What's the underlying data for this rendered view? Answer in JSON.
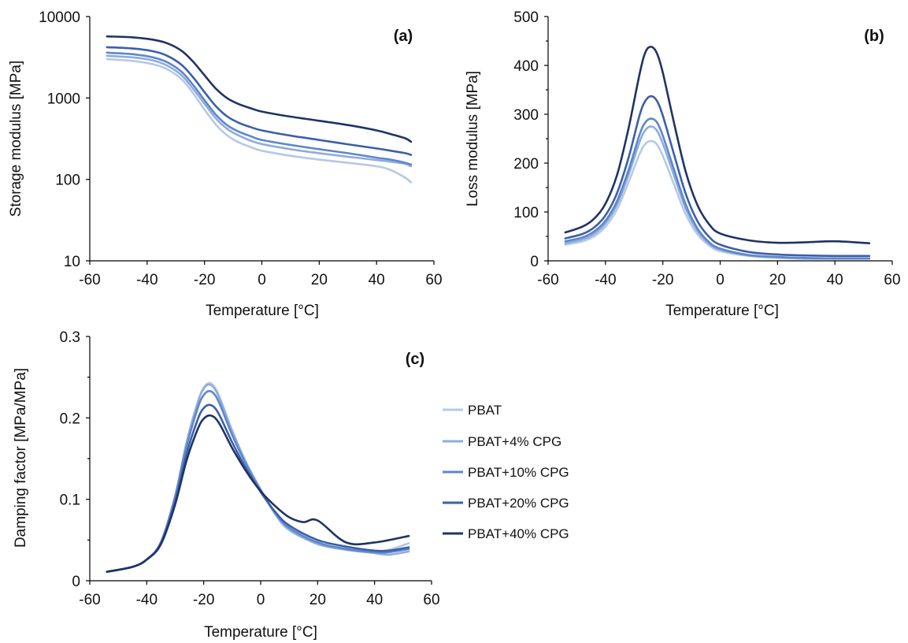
{
  "colors": [
    "#b4c9e6",
    "#8eacdc",
    "#5f86cc",
    "#3b5fa8",
    "#1f3464"
  ],
  "legend": {
    "entries": [
      "PBAT",
      "PBAT+4% CPG",
      "PBAT+10% CPG",
      "PBAT+20% CPG",
      "PBAT+40% CPG"
    ]
  },
  "chart_data": [
    {
      "panel_label": "(a)",
      "type": "line",
      "xlabel": "Temperature [°C]",
      "ylabel": "Storage modulus [MPa]",
      "xlim": [
        -60,
        60
      ],
      "xticks": [
        -60,
        -40,
        -20,
        0,
        20,
        40,
        60
      ],
      "ylim": [
        10,
        10000
      ],
      "yscale": "log",
      "yticks": [
        10,
        100,
        1000,
        10000
      ],
      "series": [
        {
          "name": "PBAT",
          "x": [
            -54,
            -45,
            -38,
            -33,
            -28,
            -24,
            -20,
            -16,
            -12,
            -8,
            -4,
            0,
            10,
            20,
            30,
            40,
            45,
            50,
            52
          ],
          "y": [
            3000,
            2850,
            2600,
            2250,
            1700,
            1150,
            720,
            470,
            345,
            285,
            250,
            225,
            195,
            175,
            160,
            145,
            130,
            105,
            92
          ]
        },
        {
          "name": "PBAT+4% CPG",
          "x": [
            -54,
            -45,
            -38,
            -33,
            -28,
            -24,
            -20,
            -16,
            -12,
            -8,
            -4,
            0,
            10,
            20,
            30,
            40,
            45,
            50,
            52
          ],
          "y": [
            3300,
            3150,
            2900,
            2500,
            1900,
            1300,
            850,
            560,
            415,
            345,
            300,
            272,
            235,
            210,
            190,
            173,
            165,
            155,
            145
          ]
        },
        {
          "name": "PBAT+10% CPG",
          "x": [
            -54,
            -45,
            -38,
            -33,
            -28,
            -24,
            -20,
            -16,
            -12,
            -8,
            -4,
            0,
            10,
            20,
            30,
            40,
            45,
            50,
            52
          ],
          "y": [
            3600,
            3450,
            3150,
            2750,
            2100,
            1450,
            940,
            620,
            460,
            385,
            340,
            305,
            265,
            235,
            210,
            185,
            175,
            160,
            152
          ]
        },
        {
          "name": "PBAT+20% CPG",
          "x": [
            -54,
            -45,
            -38,
            -33,
            -28,
            -24,
            -20,
            -16,
            -12,
            -8,
            -4,
            0,
            10,
            20,
            30,
            40,
            45,
            50,
            52
          ],
          "y": [
            4200,
            4050,
            3750,
            3300,
            2550,
            1800,
            1180,
            790,
            590,
            495,
            440,
            400,
            345,
            305,
            270,
            240,
            225,
            210,
            200
          ]
        },
        {
          "name": "PBAT+40% CPG",
          "x": [
            -54,
            -45,
            -38,
            -33,
            -28,
            -24,
            -20,
            -16,
            -12,
            -8,
            -4,
            0,
            10,
            20,
            30,
            40,
            45,
            50,
            52
          ],
          "y": [
            5700,
            5550,
            5200,
            4700,
            3800,
            2800,
            1900,
            1300,
            990,
            840,
            750,
            680,
            590,
            525,
            465,
            400,
            360,
            320,
            290
          ]
        }
      ]
    },
    {
      "panel_label": "(b)",
      "type": "line",
      "xlabel": "Temperature [°C]",
      "ylabel": "Loss modulus [MPa]",
      "xlim": [
        -60,
        60
      ],
      "xticks": [
        -60,
        -40,
        -20,
        0,
        20,
        40,
        60
      ],
      "ylim": [
        0,
        500
      ],
      "yticks": [
        0,
        100,
        200,
        300,
        400,
        500
      ],
      "series": [
        {
          "name": "PBAT",
          "x": [
            -54,
            -48,
            -44,
            -40,
            -36,
            -32,
            -28,
            -26,
            -24,
            -22,
            -20,
            -16,
            -12,
            -8,
            -4,
            0,
            10,
            20,
            30,
            40,
            52
          ],
          "y": [
            33,
            40,
            50,
            70,
            105,
            160,
            220,
            240,
            245,
            238,
            215,
            155,
            95,
            55,
            32,
            20,
            10,
            6,
            4,
            4,
            4
          ]
        },
        {
          "name": "PBAT+4% CPG",
          "x": [
            -54,
            -48,
            -44,
            -40,
            -36,
            -32,
            -28,
            -26,
            -24,
            -22,
            -20,
            -16,
            -12,
            -8,
            -4,
            0,
            10,
            20,
            30,
            40,
            52
          ],
          "y": [
            36,
            44,
            55,
            77,
            115,
            175,
            245,
            268,
            275,
            266,
            240,
            173,
            107,
            62,
            36,
            23,
            11,
            7,
            5,
            5,
            5
          ]
        },
        {
          "name": "PBAT+10% CPG",
          "x": [
            -54,
            -48,
            -44,
            -40,
            -36,
            -32,
            -28,
            -26,
            -24,
            -22,
            -20,
            -16,
            -12,
            -8,
            -4,
            0,
            10,
            20,
            30,
            40,
            52
          ],
          "y": [
            40,
            48,
            60,
            82,
            122,
            185,
            260,
            284,
            291,
            283,
            256,
            185,
            115,
            67,
            39,
            25,
            12,
            8,
            6,
            5,
            5
          ]
        },
        {
          "name": "PBAT+20% CPG",
          "x": [
            -54,
            -48,
            -44,
            -40,
            -36,
            -32,
            -28,
            -26,
            -24,
            -22,
            -20,
            -16,
            -12,
            -8,
            -4,
            0,
            10,
            20,
            30,
            40,
            52
          ],
          "y": [
            46,
            55,
            68,
            93,
            138,
            210,
            300,
            328,
            337,
            327,
            297,
            216,
            137,
            82,
            50,
            33,
            18,
            13,
            11,
            10,
            10
          ]
        },
        {
          "name": "PBAT+40% CPG",
          "x": [
            -54,
            -48,
            -44,
            -40,
            -36,
            -32,
            -28,
            -26,
            -24,
            -22,
            -20,
            -16,
            -12,
            -8,
            -4,
            0,
            10,
            20,
            30,
            40,
            52
          ],
          "y": [
            58,
            70,
            86,
            117,
            175,
            270,
            385,
            428,
            438,
            424,
            385,
            280,
            182,
            115,
            76,
            56,
            42,
            37,
            38,
            40,
            36
          ]
        }
      ]
    },
    {
      "panel_label": "(c)",
      "type": "line",
      "xlabel": "Temperature [°C]",
      "ylabel": "Damping factor [MPa/MPa]",
      "xlim": [
        -60,
        60
      ],
      "xticks": [
        -60,
        -40,
        -20,
        0,
        20,
        40,
        60
      ],
      "ylim": [
        0,
        0.3
      ],
      "yticks": [
        0,
        0.1,
        0.2,
        0.3
      ],
      "series": [
        {
          "name": "PBAT",
          "x": [
            -54,
            -45,
            -40,
            -35,
            -30,
            -26,
            -22,
            -20,
            -18,
            -16,
            -14,
            -10,
            -5,
            0,
            5,
            10,
            20,
            30,
            40,
            45,
            52
          ],
          "y": [
            0.011,
            0.017,
            0.026,
            0.048,
            0.105,
            0.17,
            0.22,
            0.237,
            0.243,
            0.237,
            0.222,
            0.185,
            0.145,
            0.112,
            0.082,
            0.062,
            0.046,
            0.04,
            0.037,
            0.038,
            0.046
          ]
        },
        {
          "name": "PBAT+4% CPG",
          "x": [
            -54,
            -45,
            -40,
            -35,
            -30,
            -26,
            -22,
            -20,
            -18,
            -16,
            -14,
            -10,
            -5,
            0,
            5,
            10,
            20,
            30,
            40,
            45,
            52
          ],
          "y": [
            0.011,
            0.017,
            0.026,
            0.048,
            0.105,
            0.17,
            0.22,
            0.236,
            0.241,
            0.235,
            0.22,
            0.183,
            0.144,
            0.112,
            0.083,
            0.063,
            0.045,
            0.038,
            0.034,
            0.032,
            0.036
          ]
        },
        {
          "name": "PBAT+10% CPG",
          "x": [
            -54,
            -45,
            -40,
            -35,
            -30,
            -26,
            -22,
            -20,
            -18,
            -16,
            -14,
            -10,
            -5,
            0,
            5,
            10,
            20,
            30,
            40,
            45,
            52
          ],
          "y": [
            0.011,
            0.017,
            0.026,
            0.047,
            0.103,
            0.165,
            0.213,
            0.228,
            0.233,
            0.228,
            0.214,
            0.179,
            0.142,
            0.111,
            0.084,
            0.065,
            0.047,
            0.039,
            0.035,
            0.035,
            0.039
          ]
        },
        {
          "name": "PBAT+20% CPG",
          "x": [
            -54,
            -45,
            -40,
            -35,
            -30,
            -26,
            -22,
            -20,
            -18,
            -16,
            -14,
            -10,
            -5,
            0,
            5,
            10,
            20,
            30,
            40,
            45,
            52
          ],
          "y": [
            0.011,
            0.017,
            0.026,
            0.046,
            0.098,
            0.156,
            0.199,
            0.212,
            0.216,
            0.212,
            0.2,
            0.17,
            0.137,
            0.109,
            0.085,
            0.068,
            0.05,
            0.042,
            0.037,
            0.037,
            0.041
          ]
        },
        {
          "name": "PBAT+40% CPG",
          "x": [
            -54,
            -45,
            -40,
            -35,
            -30,
            -26,
            -22,
            -20,
            -18,
            -16,
            -14,
            -10,
            -5,
            0,
            5,
            10,
            15,
            20,
            30,
            40,
            52
          ],
          "y": [
            0.011,
            0.017,
            0.026,
            0.045,
            0.094,
            0.148,
            0.187,
            0.199,
            0.203,
            0.2,
            0.19,
            0.163,
            0.134,
            0.11,
            0.092,
            0.078,
            0.072,
            0.074,
            0.047,
            0.047,
            0.055
          ]
        }
      ]
    }
  ]
}
